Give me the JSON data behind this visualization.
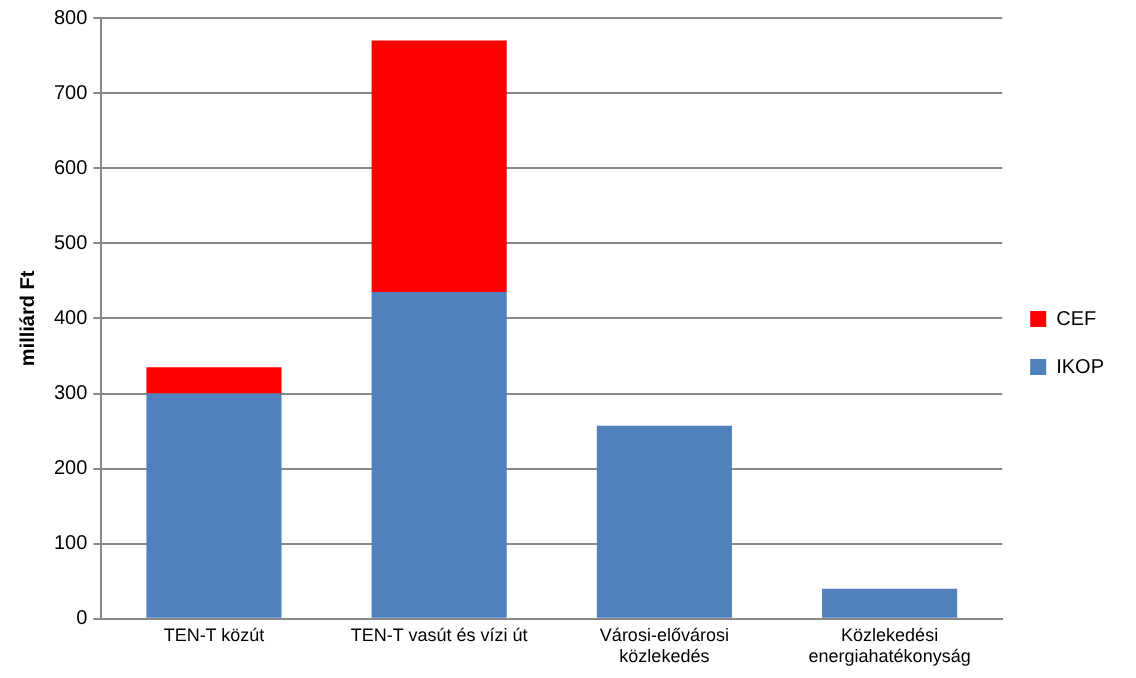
{
  "chart_data": {
    "type": "bar",
    "ylabel": "milliárd Ft",
    "categories": [
      "TEN-T közút",
      "TEN-T vasút és vízi út",
      "Városi-elővárosi közlekedés",
      "Közlekedési energiahatékonyság"
    ],
    "series": [
      {
        "name": "IKOP",
        "color": "#4f81bd",
        "values": [
          300,
          435,
          257,
          40
        ]
      },
      {
        "name": "CEF",
        "color": "#ff0000",
        "values": [
          35,
          335,
          null,
          null
        ]
      }
    ],
    "stacked": true,
    "ylim": [
      0,
      800
    ],
    "yticks": [
      0,
      100,
      200,
      300,
      400,
      500,
      600,
      700,
      800
    ],
    "grid": "y",
    "legend": "right"
  }
}
